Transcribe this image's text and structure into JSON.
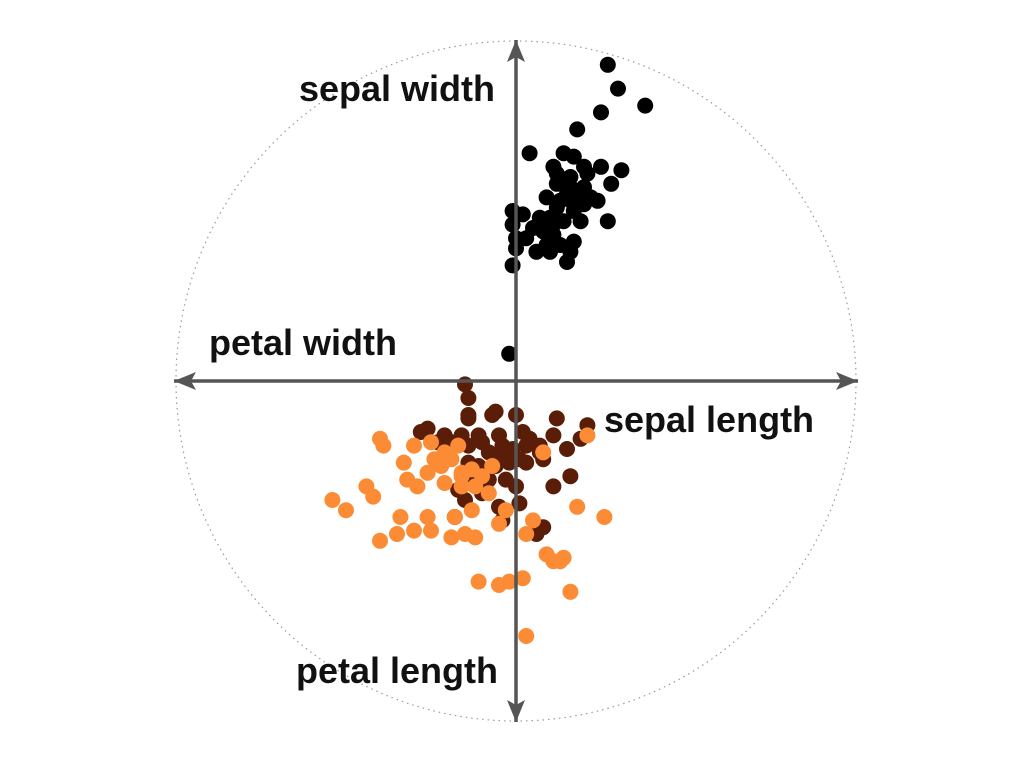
{
  "chart_data": {
    "type": "scatter",
    "title": "",
    "axes": [
      {
        "label": "sepal length",
        "direction": "right"
      },
      {
        "label": "sepal width",
        "direction": "up"
      },
      {
        "label": "petal width",
        "direction": "left"
      },
      {
        "label": "petal length",
        "direction": "down"
      }
    ],
    "xlim": [
      -1,
      1
    ],
    "ylim": [
      -1,
      1
    ],
    "grid": false,
    "legend": "none",
    "series": [
      {
        "color": "#000000",
        "points": [
          [
            0.27,
            0.93
          ],
          [
            0.3,
            0.86
          ],
          [
            0.38,
            0.81
          ],
          [
            0.25,
            0.79
          ],
          [
            0.18,
            0.74
          ],
          [
            0.04,
            0.67
          ],
          [
            0.14,
            0.67
          ],
          [
            0.17,
            0.66
          ],
          [
            0.11,
            0.63
          ],
          [
            0.2,
            0.63
          ],
          [
            0.25,
            0.63
          ],
          [
            0.31,
            0.62
          ],
          [
            0.12,
            0.61
          ],
          [
            0.16,
            0.6
          ],
          [
            0.21,
            0.61
          ],
          [
            0.28,
            0.58
          ],
          [
            0.12,
            0.58
          ],
          [
            0.16,
            0.57
          ],
          [
            0.2,
            0.57
          ],
          [
            0.15,
            0.55
          ],
          [
            0.19,
            0.55
          ],
          [
            0.22,
            0.54
          ],
          [
            0.09,
            0.54
          ],
          [
            0.13,
            0.53
          ],
          [
            0.24,
            0.53
          ],
          [
            0.17,
            0.52
          ],
          [
            0.2,
            0.52
          ],
          [
            0.12,
            0.51
          ],
          [
            -0.01,
            0.5
          ],
          [
            0.02,
            0.49
          ],
          [
            0.17,
            0.5
          ],
          [
            0.07,
            0.48
          ],
          [
            0.1,
            0.48
          ],
          [
            0.14,
            0.47
          ],
          [
            0.19,
            0.47
          ],
          [
            0.08,
            0.46
          ],
          [
            0.11,
            0.46
          ],
          [
            0.27,
            0.47
          ],
          [
            -0.01,
            0.46
          ],
          [
            0.05,
            0.45
          ],
          [
            0.08,
            0.44
          ],
          [
            0.11,
            0.43
          ],
          [
            0.0,
            0.42
          ],
          [
            0.03,
            0.42
          ],
          [
            0.09,
            0.4
          ],
          [
            0.13,
            0.4
          ],
          [
            0.17,
            0.41
          ],
          [
            0.06,
            0.38
          ],
          [
            0.1,
            0.38
          ],
          [
            0.16,
            0.38
          ],
          [
            0.0,
            0.39
          ],
          [
            0.15,
            0.35
          ],
          [
            -0.01,
            0.34
          ],
          [
            -0.02,
            0.08
          ]
        ]
      },
      {
        "color": "#5a1e08",
        "points": [
          [
            -0.15,
            -0.01
          ],
          [
            -0.14,
            -0.05
          ],
          [
            -0.14,
            -0.1
          ],
          [
            -0.06,
            -0.09
          ],
          [
            -0.07,
            -0.1
          ],
          [
            0.0,
            -0.1
          ],
          [
            -0.14,
            -0.11
          ],
          [
            0.12,
            -0.11
          ],
          [
            0.21,
            -0.13
          ],
          [
            -0.26,
            -0.14
          ],
          [
            -0.28,
            -0.15
          ],
          [
            -0.21,
            -0.16
          ],
          [
            -0.16,
            -0.16
          ],
          [
            -0.11,
            -0.16
          ],
          [
            -0.05,
            -0.16
          ],
          [
            0.02,
            -0.15
          ],
          [
            0.04,
            -0.17
          ],
          [
            0.11,
            -0.16
          ],
          [
            0.19,
            -0.17
          ],
          [
            -0.23,
            -0.18
          ],
          [
            -0.19,
            -0.18
          ],
          [
            -0.14,
            -0.19
          ],
          [
            -0.1,
            -0.18
          ],
          [
            -0.04,
            -0.19
          ],
          [
            -0.01,
            -0.2
          ],
          [
            0.03,
            -0.19
          ],
          [
            0.07,
            -0.19
          ],
          [
            0.15,
            -0.2
          ],
          [
            -0.08,
            -0.21
          ],
          [
            -0.04,
            -0.22
          ],
          [
            0.01,
            -0.23
          ],
          [
            0.07,
            -0.21
          ],
          [
            -0.2,
            -0.23
          ],
          [
            -0.14,
            -0.24
          ],
          [
            -0.11,
            -0.25
          ],
          [
            -0.06,
            -0.25
          ],
          [
            -0.02,
            -0.24
          ],
          [
            0.03,
            -0.24
          ],
          [
            0.08,
            -0.23
          ],
          [
            -0.12,
            -0.27
          ],
          [
            -0.08,
            -0.29
          ],
          [
            -0.03,
            -0.29
          ],
          [
            0.0,
            -0.31
          ],
          [
            -0.13,
            -0.3
          ],
          [
            -0.17,
            -0.32
          ],
          [
            -0.15,
            -0.35
          ],
          [
            0.01,
            -0.36
          ],
          [
            -0.05,
            -0.37
          ],
          [
            0.11,
            -0.31
          ],
          [
            -0.04,
            -0.41
          ],
          [
            0.08,
            -0.43
          ],
          [
            0.06,
            -0.45
          ],
          [
            -0.18,
            -0.4
          ],
          [
            -0.1,
            -0.33
          ],
          [
            0.16,
            -0.28
          ]
        ]
      },
      {
        "color": "#fb8c35",
        "points": [
          [
            0.21,
            -0.16
          ],
          [
            -0.4,
            -0.17
          ],
          [
            -0.39,
            -0.19
          ],
          [
            -0.3,
            -0.19
          ],
          [
            -0.25,
            -0.18
          ],
          [
            -0.21,
            -0.21
          ],
          [
            -0.17,
            -0.19
          ],
          [
            0.08,
            -0.21
          ],
          [
            -0.33,
            -0.24
          ],
          [
            -0.24,
            -0.23
          ],
          [
            -0.19,
            -0.23
          ],
          [
            -0.22,
            -0.25
          ],
          [
            -0.13,
            -0.26
          ],
          [
            -0.07,
            -0.25
          ],
          [
            -0.26,
            -0.27
          ],
          [
            -0.16,
            -0.28
          ],
          [
            -0.1,
            -0.28
          ],
          [
            -0.32,
            -0.29
          ],
          [
            -0.29,
            -0.31
          ],
          [
            -0.21,
            -0.3
          ],
          [
            -0.16,
            -0.31
          ],
          [
            -0.12,
            -0.31
          ],
          [
            -0.08,
            -0.33
          ],
          [
            -0.44,
            -0.31
          ],
          [
            -0.42,
            -0.34
          ],
          [
            -0.54,
            -0.35
          ],
          [
            -0.5,
            -0.38
          ],
          [
            -0.34,
            -0.4
          ],
          [
            -0.26,
            -0.4
          ],
          [
            -0.18,
            -0.4
          ],
          [
            -0.13,
            -0.38
          ],
          [
            -0.05,
            -0.42
          ],
          [
            0.05,
            -0.41
          ],
          [
            0.18,
            -0.37
          ],
          [
            0.26,
            -0.4
          ],
          [
            -0.3,
            -0.44
          ],
          [
            -0.25,
            -0.44
          ],
          [
            -0.19,
            -0.46
          ],
          [
            -0.15,
            -0.45
          ],
          [
            -0.4,
            -0.47
          ],
          [
            0.03,
            -0.45
          ],
          [
            0.09,
            -0.51
          ],
          [
            0.13,
            -0.53
          ],
          [
            0.11,
            -0.53
          ],
          [
            0.14,
            -0.52
          ],
          [
            -0.11,
            -0.59
          ],
          [
            -0.05,
            -0.6
          ],
          [
            0.16,
            -0.62
          ],
          [
            0.03,
            -0.75
          ],
          [
            -0.02,
            -0.59
          ],
          [
            -0.35,
            -0.45
          ],
          [
            -0.12,
            -0.46
          ],
          [
            0.02,
            -0.58
          ],
          [
            -0.16,
            -0.27
          ],
          [
            -0.03,
            -0.38
          ]
        ]
      }
    ]
  }
}
